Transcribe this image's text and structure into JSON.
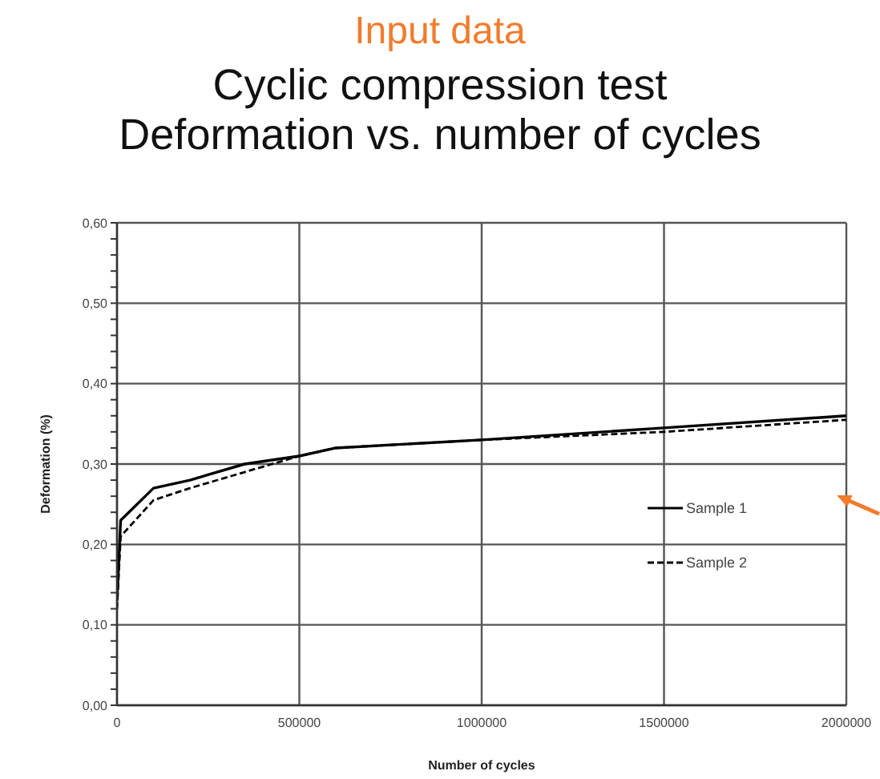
{
  "chart_data": {
    "type": "line",
    "title": "Cyclic compression test",
    "subtitle": "Deformation vs. number of cycles",
    "annotations": [
      "Input data"
    ],
    "xlabel": "Number of cycles",
    "ylabel": "Deformation (%)",
    "xlim": [
      0,
      2000000
    ],
    "xticks": [
      0,
      500000,
      1000000,
      1500000,
      2000000
    ],
    "ylim": [
      0,
      0.6
    ],
    "yticks": [
      {
        "value": 0,
        "label": "0,00"
      },
      {
        "value": 0.02,
        "label": null
      },
      {
        "value": 0.04,
        "label": null
      },
      {
        "value": 0.06,
        "label": null
      },
      {
        "value": 0.08,
        "label": null
      },
      {
        "value": 0.1,
        "label": "0,10"
      },
      {
        "value": 0.12,
        "label": null
      },
      {
        "value": 0.14,
        "label": null
      },
      {
        "value": 0.16,
        "label": null
      },
      {
        "value": 0.18,
        "label": null
      },
      {
        "value": 0.2,
        "label": "0,20"
      },
      {
        "value": 0.22,
        "label": null
      },
      {
        "value": 0.24,
        "label": null
      },
      {
        "value": 0.26,
        "label": null
      },
      {
        "value": 0.28,
        "label": null
      },
      {
        "value": 0.3,
        "label": "0,30"
      },
      {
        "value": 0.32,
        "label": null
      },
      {
        "value": 0.34,
        "label": null
      },
      {
        "value": 0.36,
        "label": null
      },
      {
        "value": 0.38,
        "label": null
      },
      {
        "value": 0.4,
        "label": "0,40"
      },
      {
        "value": 0.42,
        "label": null
      },
      {
        "value": 0.44,
        "label": null
      },
      {
        "value": 0.46,
        "label": null
      },
      {
        "value": 0.48,
        "label": null
      },
      {
        "value": 0.5,
        "label": "0,50"
      },
      {
        "value": 0.52,
        "label": null
      },
      {
        "value": 0.54,
        "label": null
      },
      {
        "value": 0.56,
        "label": null
      },
      {
        "value": 0.58,
        "label": null
      },
      {
        "value": 0.6,
        "label": "0,60"
      }
    ],
    "grid": true,
    "legend": "right",
    "marker": "none",
    "series": [
      {
        "name": "Sample 1",
        "color": "#000000",
        "line_style": "solid",
        "x": [
          0,
          10000,
          100000,
          200000,
          350000,
          500000,
          600000,
          1000000,
          1500000,
          2000000
        ],
        "values": [
          0.13,
          0.23,
          0.27,
          0.28,
          0.3,
          0.31,
          0.32,
          0.33,
          0.345,
          0.36
        ]
      },
      {
        "name": "Sample 2",
        "color": "#000000",
        "line_style": "dashed",
        "x": [
          0,
          10000,
          100000,
          200000,
          350000,
          500000,
          600000,
          1000000,
          1500000,
          2000000
        ],
        "values": [
          0.12,
          0.21,
          0.255,
          0.27,
          0.29,
          0.31,
          0.32,
          0.33,
          0.34,
          0.355
        ]
      }
    ]
  }
}
